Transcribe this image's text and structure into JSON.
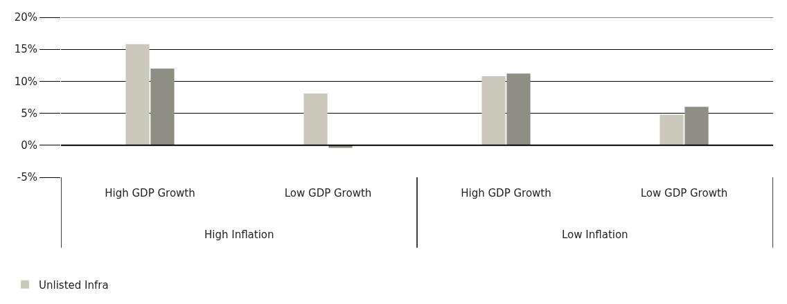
{
  "chart_data": {
    "type": "bar",
    "categories": [
      "High GDP Growth",
      "Low GDP Growth",
      "High GDP Growth",
      "Low GDP Growth"
    ],
    "annotations": [
      "High Inflation",
      "Low Inflation"
    ],
    "series": [
      {
        "name": "Unlisted Infra",
        "color": "#cbc9bc",
        "values": [
          15.8,
          8.1,
          10.8,
          4.8
        ]
      },
      {
        "color": "#8e8e84",
        "values": [
          12.0,
          -0.4,
          11.2,
          6.0
        ]
      }
    ],
    "ylim": [
      -5,
      20
    ],
    "yticks": [
      {
        "value": -5,
        "label": "-5%"
      },
      {
        "value": 0,
        "label": "0%"
      },
      {
        "value": 5,
        "label": "5%"
      },
      {
        "value": 10,
        "label": "10%"
      },
      {
        "value": 15,
        "label": "15%"
      },
      {
        "value": 20,
        "label": "20%"
      }
    ],
    "grid": "y",
    "legend": "bottom left"
  }
}
